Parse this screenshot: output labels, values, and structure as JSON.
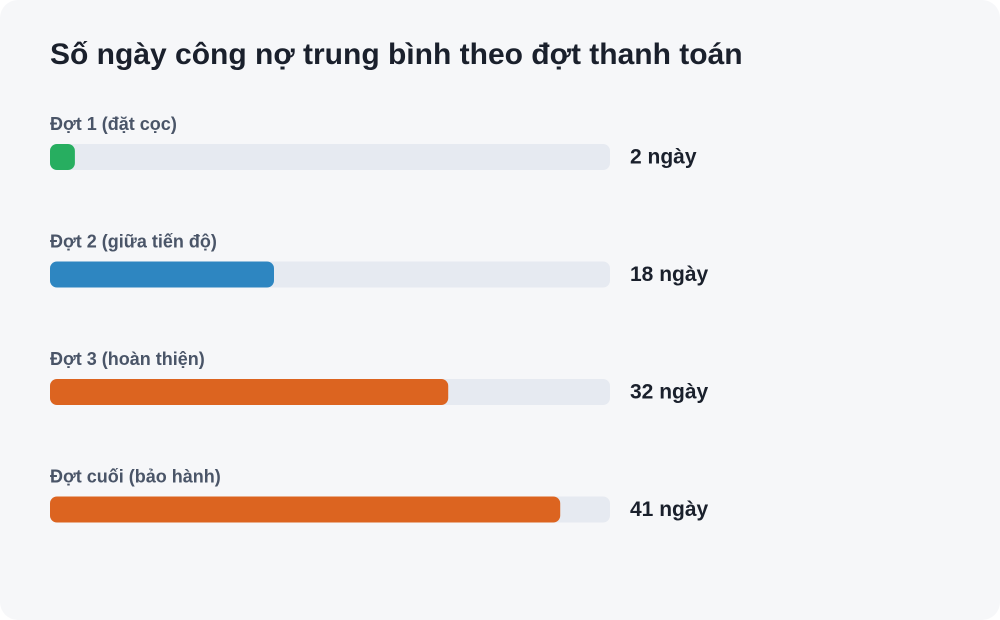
{
  "chart_data": {
    "type": "bar",
    "orientation": "horizontal",
    "title": "Số ngày công nợ trung bình theo đợt thanh toán",
    "categories": [
      "Đợt 1 (đặt cọc)",
      "Đợt 2 (giữa tiến độ)",
      "Đợt 3 (hoàn thiện)",
      "Đợt cuối (bảo hành)"
    ],
    "values": [
      2,
      18,
      32,
      41
    ],
    "value_labels": [
      "2 ngày",
      "18 ngày",
      "32 ngày",
      "41 ngày"
    ],
    "colors": [
      "#27ae60",
      "#2e86c1",
      "#dc6420",
      "#dc6420"
    ],
    "xlim": [
      0,
      45
    ]
  }
}
